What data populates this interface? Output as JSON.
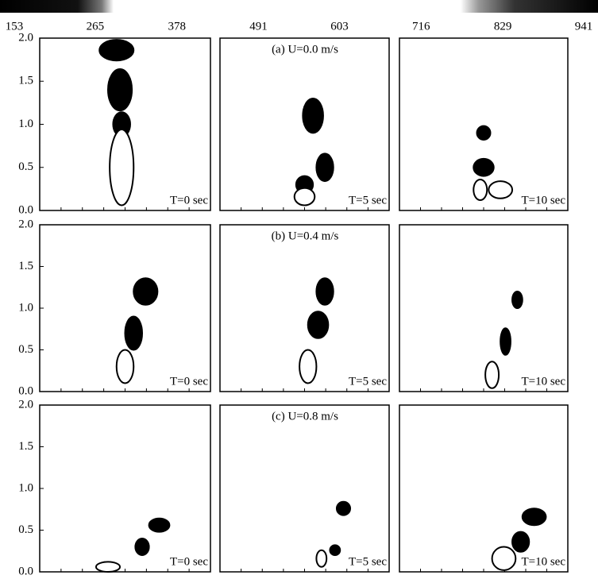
{
  "colorbar": {
    "ticks": [
      153,
      265,
      378,
      491,
      603,
      716,
      829,
      941
    ]
  },
  "y_axis": {
    "ylim": [
      0,
      2
    ],
    "ticks": [
      {
        "value": 0,
        "label": "0.0"
      },
      {
        "value": 0.5,
        "label": "0.5"
      },
      {
        "value": 1,
        "label": "1.0"
      },
      {
        "value": 1.5,
        "label": "1.5"
      },
      {
        "value": 2,
        "label": "2.0"
      }
    ]
  },
  "rows": [
    {
      "title": "(a) U=0.0 m/s",
      "panels": [
        {
          "time": "T=0 sec"
        },
        {
          "time": "T=5 sec"
        },
        {
          "time": "T=10 sec"
        }
      ]
    },
    {
      "title": "(b) U=0.4 m/s",
      "panels": [
        {
          "time": "T=0 sec"
        },
        {
          "time": "T=5 sec"
        },
        {
          "time": "T=10 sec"
        }
      ]
    },
    {
      "title": "(c) U=0.8 m/s",
      "panels": [
        {
          "time": "T=0 sec"
        },
        {
          "time": "T=5 sec"
        },
        {
          "time": "T=10 sec"
        }
      ]
    }
  ]
}
